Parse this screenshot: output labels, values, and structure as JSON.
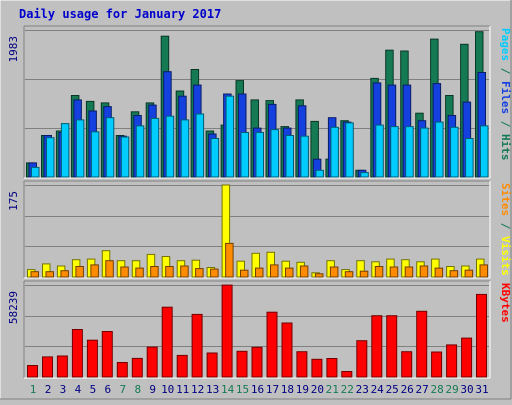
{
  "chart_data": {
    "type": "bar",
    "title": "Daily usage for January 2017",
    "categories": [
      "1",
      "2",
      "3",
      "4",
      "5",
      "6",
      "7",
      "8",
      "9",
      "10",
      "11",
      "12",
      "13",
      "14",
      "15",
      "16",
      "17",
      "18",
      "19",
      "20",
      "21",
      "22",
      "23",
      "24",
      "25",
      "26",
      "27",
      "28",
      "29",
      "30",
      "31"
    ],
    "weekend_days": [
      "1",
      "7",
      "8",
      "14",
      "15",
      "21",
      "22",
      "28",
      "29"
    ],
    "panels": [
      {
        "id": "top",
        "max_label": "1983",
        "ylim": [
          0,
          1983
        ],
        "series": [
          {
            "name": "Hits",
            "color": "#157a54",
            "values": [
              190,
              560,
              620,
              1100,
              1020,
              1000,
              560,
              880,
              1000,
              1900,
              1160,
              1450,
              620,
              700,
              1300,
              1040,
              1030,
              680,
              1040,
              750,
              240,
              760,
              90,
              1330,
              1710,
              1700,
              860,
              1860,
              1100,
              1790,
              1960
            ]
          },
          {
            "name": "Files",
            "color": "#1540e0",
            "values": [
              190,
              560,
              600,
              1040,
              890,
              950,
              550,
              830,
              970,
              1420,
              1090,
              1240,
              580,
              1120,
              1120,
              660,
              980,
              660,
              960,
              240,
              800,
              740,
              90,
              1270,
              1240,
              1240,
              760,
              1260,
              830,
              1010,
              1410
            ]
          },
          {
            "name": "Pages",
            "color": "#00ccff",
            "values": [
              130,
              530,
              720,
              770,
              610,
              800,
              540,
              690,
              790,
              820,
              770,
              850,
              520,
              1090,
              600,
              600,
              640,
              560,
              550,
              90,
              670,
              730,
              60,
              700,
              680,
              680,
              660,
              740,
              670,
              520,
              690
            ]
          }
        ]
      },
      {
        "id": "middle",
        "max_label": "175",
        "ylim": [
          0,
          175
        ],
        "series": [
          {
            "name": "Visits",
            "color": "#ffff00",
            "values": [
              14,
              25,
              21,
              33,
              34,
              50,
              31,
              31,
              43,
              39,
              31,
              32,
              18,
              175,
              30,
              45,
              47,
              30,
              28,
              8,
              31,
              14,
              31,
              29,
              34,
              33,
              29,
              34,
              20,
              21,
              34
            ]
          },
          {
            "name": "Sites",
            "color": "#ff8c00",
            "values": [
              10,
              10,
              12,
              20,
              23,
              31,
              19,
              17,
              20,
              20,
              21,
              16,
              15,
              64,
              13,
              17,
              23,
              17,
              21,
              6,
              19,
              10,
              11,
              20,
              19,
              19,
              21,
              17,
              12,
              13,
              23
            ]
          }
        ]
      },
      {
        "id": "bottom",
        "max_label": "58239",
        "ylim": [
          0,
          58239
        ],
        "series": [
          {
            "name": "KBytes",
            "color": "#ff0000",
            "values": [
              7300,
              12700,
              13300,
              30100,
              23300,
              28800,
              9200,
              11800,
              18900,
              44200,
              13700,
              39600,
              15200,
              58200,
              16300,
              18800,
              41000,
              34200,
              16000,
              11200,
              11700,
              3500,
              23000,
              38800,
              38800,
              16000,
              41600,
              15800,
              20300,
              24600,
              52300
            ]
          }
        ]
      }
    ],
    "right_labels": [
      {
        "panel": "top",
        "parts": [
          {
            "text": "Pages",
            "color": "#00ccff"
          },
          {
            "text": " / ",
            "color": "#157a54"
          },
          {
            "text": "Files",
            "color": "#1540e0"
          },
          {
            "text": " / ",
            "color": "#157a54"
          },
          {
            "text": "Hits",
            "color": "#157a54"
          }
        ]
      },
      {
        "panel": "middle",
        "parts": [
          {
            "text": "Sites",
            "color": "#ff8c00"
          },
          {
            "text": " / ",
            "color": "#157a54"
          },
          {
            "text": "Visits",
            "color": "#ffff00"
          }
        ]
      },
      {
        "panel": "bottom",
        "parts": [
          {
            "text": "KBytes",
            "color": "#ff0000"
          }
        ]
      }
    ],
    "colors": {
      "background": "#c0c0c0",
      "title": "#0000cc",
      "axis_label": "#000080",
      "weekday": "#000080",
      "weekend": "#157a54",
      "grid": "#808080"
    },
    "grid": true
  }
}
